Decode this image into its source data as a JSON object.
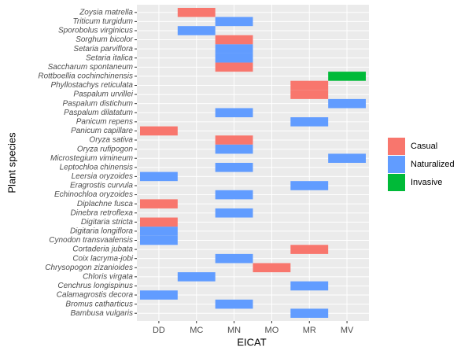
{
  "chart_data": {
    "type": "tile",
    "x_label": "EICAT",
    "y_label": "Plant species",
    "x_categories": [
      "DD",
      "MC",
      "MN",
      "MO",
      "MR",
      "MV"
    ],
    "y_categories": [
      "Zoysia matrella",
      "Triticum turgidum",
      "Sporobolus virginicus",
      "Sorghum bicolor",
      "Setaria parviflora",
      "Setaria italica",
      "Saccharum spontaneum",
      "Rottboellia cochinchinensis",
      "Phyllostachys reticulata",
      "Paspalum urvillei",
      "Paspalum distichum",
      "Paspalum dilatatum",
      "Panicum repens",
      "Panicum capillare",
      "Oryza sativa",
      "Oryza rufipogon",
      "Microstegium vimineum",
      "Leptochloa chinensis",
      "Leersia oryzoides",
      "Eragrostis curvula",
      "Echinochloa oryzoides",
      "Diplachne fusca",
      "Dinebra retroflexa",
      "Digitaria stricta",
      "Digitaria longiflora",
      "Cynodon transvaalensis",
      "Cortaderia jubata",
      "Coix lacryma-jobi",
      "Chrysopogon zizanioides",
      "Chloris virgata",
      "Cenchrus longispinus",
      "Calamagrostis decora",
      "Bromus catharticus",
      "Bambusa vulgaris"
    ],
    "series": [
      {
        "name": "Casual",
        "color": "#F8766D"
      },
      {
        "name": "Naturalized",
        "color": "#619CFF"
      },
      {
        "name": "Invasive",
        "color": "#00BA38"
      }
    ],
    "tiles": [
      {
        "y": "Zoysia matrella",
        "x": "MC",
        "fill": "Casual"
      },
      {
        "y": "Triticum turgidum",
        "x": "MN",
        "fill": "Naturalized"
      },
      {
        "y": "Sporobolus virginicus",
        "x": "MC",
        "fill": "Naturalized"
      },
      {
        "y": "Sorghum bicolor",
        "x": "MN",
        "fill": "Casual"
      },
      {
        "y": "Setaria parviflora",
        "x": "MN",
        "fill": "Naturalized"
      },
      {
        "y": "Setaria italica",
        "x": "MN",
        "fill": "Naturalized"
      },
      {
        "y": "Saccharum spontaneum",
        "x": "MN",
        "fill": "Casual"
      },
      {
        "y": "Rottboellia cochinchinensis",
        "x": "MV",
        "fill": "Invasive"
      },
      {
        "y": "Phyllostachys reticulata",
        "x": "MR",
        "fill": "Casual"
      },
      {
        "y": "Paspalum urvillei",
        "x": "MR",
        "fill": "Casual"
      },
      {
        "y": "Paspalum distichum",
        "x": "MV",
        "fill": "Naturalized"
      },
      {
        "y": "Paspalum dilatatum",
        "x": "MN",
        "fill": "Naturalized"
      },
      {
        "y": "Panicum repens",
        "x": "MR",
        "fill": "Naturalized"
      },
      {
        "y": "Panicum capillare",
        "x": "DD",
        "fill": "Casual"
      },
      {
        "y": "Oryza sativa",
        "x": "MN",
        "fill": "Casual"
      },
      {
        "y": "Oryza rufipogon",
        "x": "MN",
        "fill": "Naturalized"
      },
      {
        "y": "Microstegium vimineum",
        "x": "MV",
        "fill": "Naturalized"
      },
      {
        "y": "Leptochloa chinensis",
        "x": "MN",
        "fill": "Naturalized"
      },
      {
        "y": "Leersia oryzoides",
        "x": "DD",
        "fill": "Naturalized"
      },
      {
        "y": "Eragrostis curvula",
        "x": "MR",
        "fill": "Naturalized"
      },
      {
        "y": "Echinochloa oryzoides",
        "x": "MN",
        "fill": "Naturalized"
      },
      {
        "y": "Diplachne fusca",
        "x": "DD",
        "fill": "Casual"
      },
      {
        "y": "Dinebra retroflexa",
        "x": "MN",
        "fill": "Naturalized"
      },
      {
        "y": "Digitaria stricta",
        "x": "DD",
        "fill": "Casual"
      },
      {
        "y": "Digitaria longiflora",
        "x": "DD",
        "fill": "Naturalized"
      },
      {
        "y": "Cynodon transvaalensis",
        "x": "DD",
        "fill": "Naturalized"
      },
      {
        "y": "Cortaderia jubata",
        "x": "MR",
        "fill": "Casual"
      },
      {
        "y": "Coix lacryma-jobi",
        "x": "MN",
        "fill": "Naturalized"
      },
      {
        "y": "Chrysopogon zizanioides",
        "x": "MO",
        "fill": "Casual"
      },
      {
        "y": "Chloris virgata",
        "x": "MC",
        "fill": "Naturalized"
      },
      {
        "y": "Cenchrus longispinus",
        "x": "MR",
        "fill": "Naturalized"
      },
      {
        "y": "Calamagrostis decora",
        "x": "DD",
        "fill": "Naturalized"
      },
      {
        "y": "Bromus catharticus",
        "x": "MN",
        "fill": "Naturalized"
      },
      {
        "y": "Bambusa vulgaris",
        "x": "MR",
        "fill": "Naturalized"
      }
    ]
  }
}
